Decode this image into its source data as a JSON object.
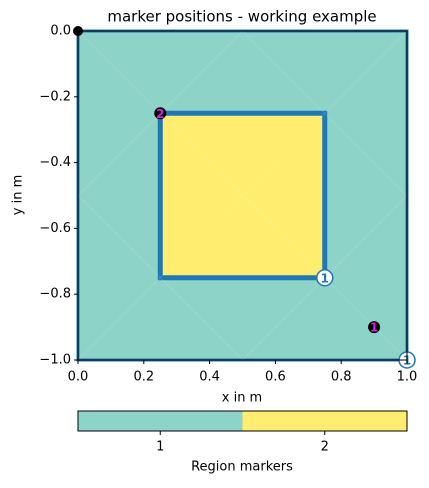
{
  "chart_data": {
    "type": "mesh",
    "title": "marker positions - working example",
    "xlabel": "x in m",
    "ylabel": "y in m",
    "xlim": [
      0,
      1
    ],
    "ylim": [
      -1,
      0
    ],
    "xticks": [
      {
        "value": 0,
        "label": "0.0"
      },
      0.2,
      0.4,
      0.6,
      0.8,
      {
        "value": 1,
        "label": "1.0"
      }
    ],
    "yticks": [
      {
        "value": 0,
        "label": "0.0"
      },
      {
        "value": -0.2,
        "label": "−0.2"
      },
      {
        "value": -0.4,
        "label": "−0.4"
      },
      {
        "value": -0.6,
        "label": "−0.6"
      },
      {
        "value": -0.8,
        "label": "−0.8"
      },
      {
        "value": -1,
        "label": "−1.0"
      }
    ],
    "regions": [
      {
        "color": "#8dd3c7",
        "x": [
          0,
          1,
          1,
          0
        ],
        "y": [
          0,
          0,
          -1,
          -1
        ]
      },
      {
        "color": "#ffed6f",
        "x": [
          0.25,
          0.75,
          0.75,
          0.25
        ],
        "y": [
          -0.25,
          -0.25,
          -0.75,
          -0.75
        ]
      }
    ],
    "region_markers": {
      "x": [
        0.25,
        0.9
      ],
      "y": [
        -0.25,
        -0.9
      ],
      "labels": [
        "2",
        "1"
      ]
    },
    "node_markers": {
      "x": [
        0.75,
        1
      ],
      "y": [
        -0.75,
        -1
      ],
      "labels": [
        "1",
        "1"
      ]
    },
    "corner_point": {
      "x": 0,
      "y": 0
    },
    "colorbar": {
      "label": "Region markers",
      "categories": [
        "1",
        "2"
      ],
      "colors": [
        "#8dd3c7",
        "#ffed6f"
      ]
    }
  }
}
